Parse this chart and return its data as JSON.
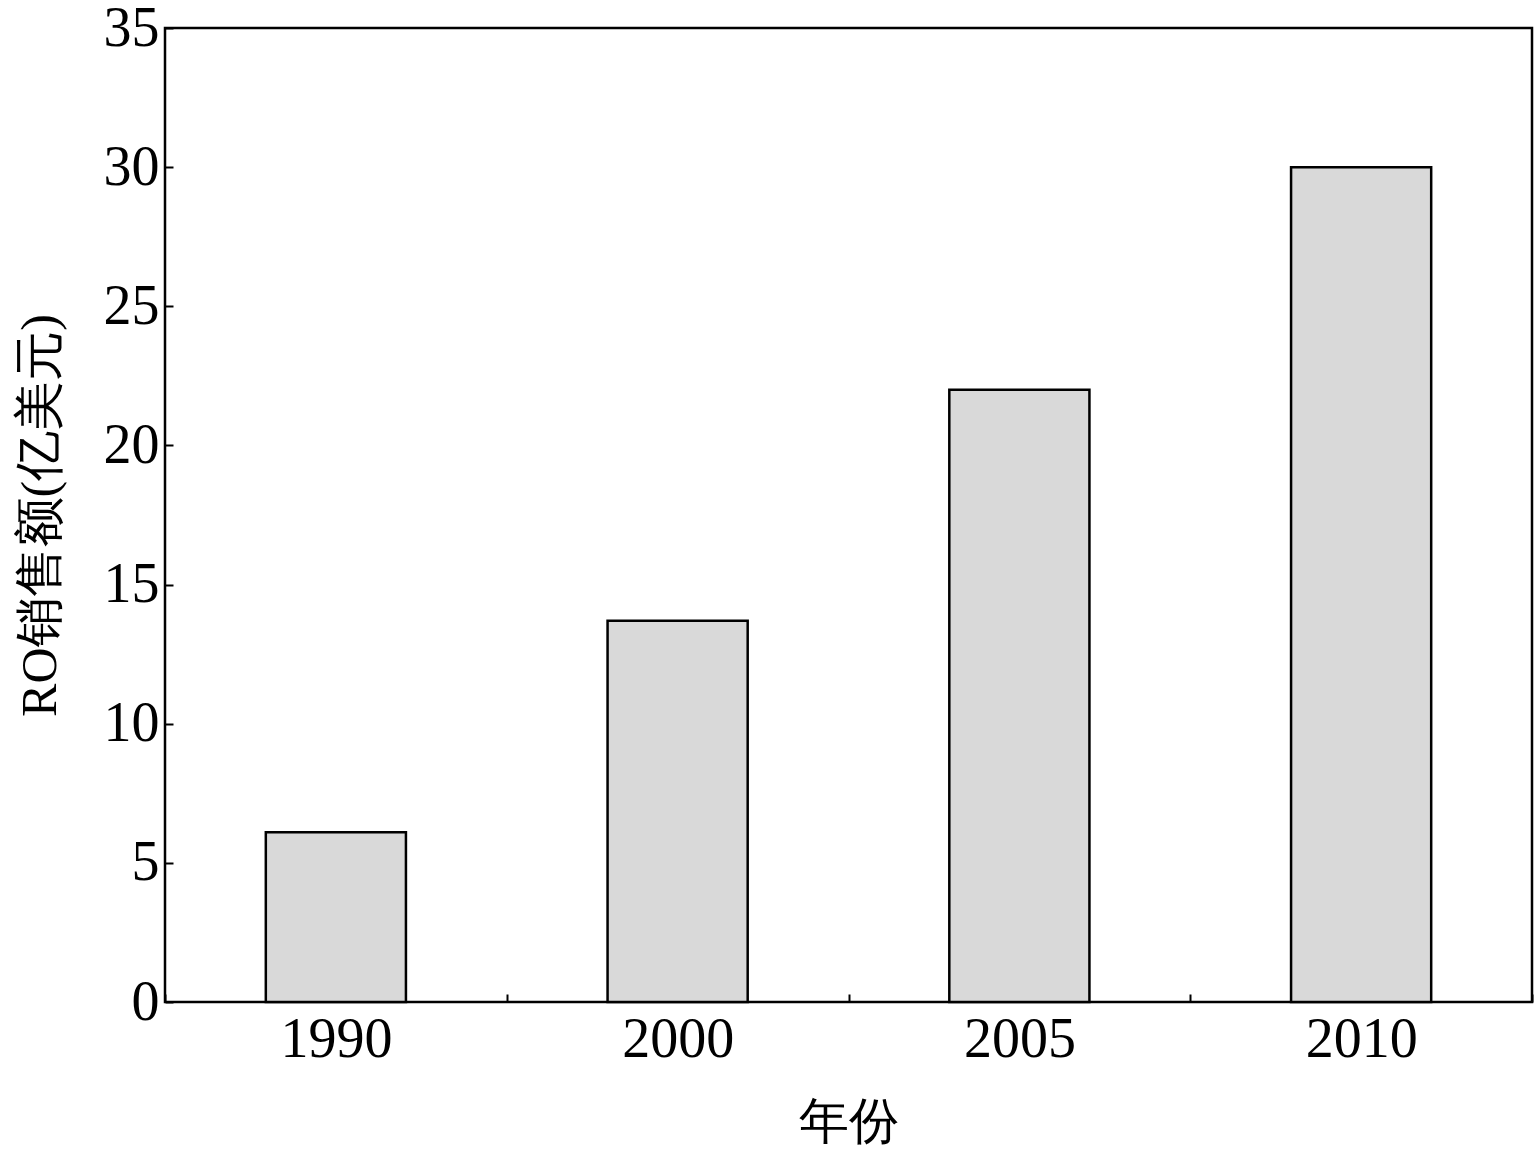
{
  "chart_data": {
    "type": "bar",
    "xlabel": "年份",
    "ylabel": "RO销售额(亿美元)",
    "categories": [
      "1990",
      "2000",
      "2005",
      "2010"
    ],
    "values": [
      6.1,
      13.7,
      22,
      30
    ],
    "color": "#d9d9d9",
    "ylim": [
      0,
      35
    ],
    "yticks": [
      0,
      5,
      10,
      15,
      20,
      25,
      30,
      35
    ]
  }
}
